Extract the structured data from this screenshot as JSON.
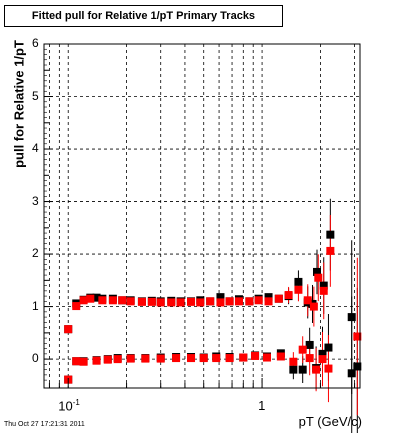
{
  "chart_data": {
    "type": "scatter",
    "title": "Fitted pull for Relative 1/pT  Primary Tracks",
    "xlabel": "pT (GeV/c)",
    "ylabel": "pull for Relative 1/pT",
    "footer": "Thu Oct 27 17:21:31 2011",
    "x_scale": "log",
    "xlim": [
      0.075,
      3.2
    ],
    "ylim": [
      -0.55,
      6
    ],
    "grid": true,
    "y_ticks": [
      {
        "value": 0,
        "label": "0"
      },
      {
        "value": 1,
        "label": "1"
      },
      {
        "value": 2,
        "label": "2"
      },
      {
        "value": 3,
        "label": "3"
      },
      {
        "value": 4,
        "label": "4"
      },
      {
        "value": 5,
        "label": "5"
      },
      {
        "value": 6,
        "label": "6"
      }
    ],
    "x_tick_labels": [
      {
        "value": 0.1,
        "base": "10",
        "exp": "-1"
      },
      {
        "value": 1,
        "base": "1",
        "exp": ""
      }
    ],
    "series": [
      {
        "color": "#000000",
        "marker": "square",
        "points": [
          {
            "x": 0.1,
            "y": 0.57
          },
          {
            "x": 0.11,
            "y": 1.06
          },
          {
            "x": 0.12,
            "y": 1.13
          },
          {
            "x": 0.13,
            "y": 1.17
          },
          {
            "x": 0.14,
            "y": 1.17
          },
          {
            "x": 0.15,
            "y": 1.15
          },
          {
            "x": 0.17,
            "y": 1.15
          },
          {
            "x": 0.19,
            "y": 1.12
          },
          {
            "x": 0.21,
            "y": 1.12
          },
          {
            "x": 0.24,
            "y": 1.1
          },
          {
            "x": 0.27,
            "y": 1.11
          },
          {
            "x": 0.3,
            "y": 1.1
          },
          {
            "x": 0.34,
            "y": 1.11
          },
          {
            "x": 0.38,
            "y": 1.1
          },
          {
            "x": 0.43,
            "y": 1.1
          },
          {
            "x": 0.48,
            "y": 1.12
          },
          {
            "x": 0.54,
            "y": 1.1
          },
          {
            "x": 0.61,
            "y": 1.18
          },
          {
            "x": 0.68,
            "y": 1.1
          },
          {
            "x": 0.76,
            "y": 1.14
          },
          {
            "x": 0.86,
            "y": 1.1
          },
          {
            "x": 0.96,
            "y": 1.15
          },
          {
            "x": 1.08,
            "y": 1.18
          },
          {
            "x": 1.22,
            "y": 1.15
          },
          {
            "x": 1.37,
            "y": 1.2
          },
          {
            "x": 1.54,
            "y": 1.47
          },
          {
            "x": 1.72,
            "y": 1.08
          },
          {
            "x": 1.82,
            "y": 1.05
          },
          {
            "x": 1.92,
            "y": 1.66
          },
          {
            "x": 2.08,
            "y": 1.4
          },
          {
            "x": 2.25,
            "y": 2.37
          },
          {
            "x": 2.9,
            "y": 0.8
          },
          {
            "x": 0.1,
            "y": -0.39
          },
          {
            "x": 0.11,
            "y": -0.04
          },
          {
            "x": 0.12,
            "y": -0.04
          },
          {
            "x": 0.14,
            "y": -0.02
          },
          {
            "x": 0.16,
            "y": 0.0
          },
          {
            "x": 0.18,
            "y": 0.02
          },
          {
            "x": 0.21,
            "y": 0.02
          },
          {
            "x": 0.25,
            "y": 0.02
          },
          {
            "x": 0.3,
            "y": 0.03
          },
          {
            "x": 0.36,
            "y": 0.04
          },
          {
            "x": 0.43,
            "y": 0.04
          },
          {
            "x": 0.5,
            "y": 0.03
          },
          {
            "x": 0.58,
            "y": 0.05
          },
          {
            "x": 0.68,
            "y": 0.04
          },
          {
            "x": 0.8,
            "y": 0.03
          },
          {
            "x": 0.92,
            "y": 0.07
          },
          {
            "x": 1.06,
            "y": 0.05
          },
          {
            "x": 1.25,
            "y": 0.11
          },
          {
            "x": 1.45,
            "y": -0.2
          },
          {
            "x": 1.62,
            "y": -0.2
          },
          {
            "x": 1.76,
            "y": 0.27
          },
          {
            "x": 1.9,
            "y": -0.17
          },
          {
            "x": 2.05,
            "y": 0.1
          },
          {
            "x": 2.2,
            "y": 0.22
          },
          {
            "x": 2.9,
            "y": -0.27
          },
          {
            "x": 3.1,
            "y": -0.14
          }
        ]
      },
      {
        "color": "#ff0000",
        "marker": "square",
        "points": [
          {
            "x": 0.1,
            "y": 0.57
          },
          {
            "x": 0.11,
            "y": 1.01
          },
          {
            "x": 0.12,
            "y": 1.12
          },
          {
            "x": 0.13,
            "y": 1.15
          },
          {
            "x": 0.15,
            "y": 1.12
          },
          {
            "x": 0.17,
            "y": 1.12
          },
          {
            "x": 0.19,
            "y": 1.12
          },
          {
            "x": 0.21,
            "y": 1.1
          },
          {
            "x": 0.24,
            "y": 1.09
          },
          {
            "x": 0.27,
            "y": 1.09
          },
          {
            "x": 0.3,
            "y": 1.08
          },
          {
            "x": 0.34,
            "y": 1.08
          },
          {
            "x": 0.38,
            "y": 1.08
          },
          {
            "x": 0.43,
            "y": 1.09
          },
          {
            "x": 0.48,
            "y": 1.08
          },
          {
            "x": 0.54,
            "y": 1.1
          },
          {
            "x": 0.61,
            "y": 1.08
          },
          {
            "x": 0.68,
            "y": 1.1
          },
          {
            "x": 0.76,
            "y": 1.1
          },
          {
            "x": 0.86,
            "y": 1.1
          },
          {
            "x": 0.96,
            "y": 1.12
          },
          {
            "x": 1.08,
            "y": 1.1
          },
          {
            "x": 1.22,
            "y": 1.15
          },
          {
            "x": 1.37,
            "y": 1.22
          },
          {
            "x": 1.54,
            "y": 1.32
          },
          {
            "x": 1.72,
            "y": 1.12
          },
          {
            "x": 1.85,
            "y": 1.0
          },
          {
            "x": 1.95,
            "y": 1.55
          },
          {
            "x": 2.08,
            "y": 1.3
          },
          {
            "x": 2.25,
            "y": 2.06
          },
          {
            "x": 0.1,
            "y": -0.39
          },
          {
            "x": 0.11,
            "y": -0.04
          },
          {
            "x": 0.12,
            "y": -0.05
          },
          {
            "x": 0.14,
            "y": -0.03
          },
          {
            "x": 0.16,
            "y": -0.01
          },
          {
            "x": 0.18,
            "y": 0.0
          },
          {
            "x": 0.21,
            "y": 0.01
          },
          {
            "x": 0.25,
            "y": 0.01
          },
          {
            "x": 0.3,
            "y": 0.01
          },
          {
            "x": 0.36,
            "y": 0.02
          },
          {
            "x": 0.43,
            "y": 0.02
          },
          {
            "x": 0.5,
            "y": 0.02
          },
          {
            "x": 0.58,
            "y": 0.02
          },
          {
            "x": 0.68,
            "y": 0.02
          },
          {
            "x": 0.8,
            "y": 0.03
          },
          {
            "x": 0.92,
            "y": 0.06
          },
          {
            "x": 1.06,
            "y": 0.03
          },
          {
            "x": 1.25,
            "y": 0.05
          },
          {
            "x": 1.45,
            "y": -0.05
          },
          {
            "x": 1.62,
            "y": 0.18
          },
          {
            "x": 1.76,
            "y": 0.02
          },
          {
            "x": 1.9,
            "y": -0.2
          },
          {
            "x": 2.05,
            "y": 0.0
          },
          {
            "x": 2.2,
            "y": -0.18
          },
          {
            "x": 3.1,
            "y": 0.43
          }
        ]
      }
    ]
  }
}
